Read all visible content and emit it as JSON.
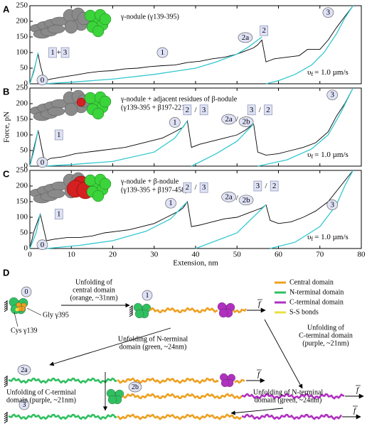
{
  "chart_data": [
    {
      "type": "line",
      "panel": "A",
      "description": [
        "γ-nodule (γ139-395)"
      ],
      "speed_symbol": "υ",
      "speed_sub": "f",
      "speed_value": "= 1.0 µm/s",
      "xlim": [
        0,
        80
      ],
      "ylim": [
        0,
        250
      ],
      "yticks": [
        0,
        50,
        100,
        150,
        200,
        250
      ],
      "series": [
        {
          "color": "#000000",
          "x": [
            0,
            1,
            2,
            2.5,
            3.5,
            5,
            8,
            11,
            14,
            17,
            20,
            23,
            26,
            29,
            32,
            35,
            38,
            41,
            44,
            47,
            50,
            52,
            54,
            55,
            56,
            57,
            59,
            62,
            65,
            67,
            70,
            72,
            74,
            76,
            78
          ],
          "values": [
            0,
            45,
            95,
            60,
            10,
            15,
            22,
            28,
            35,
            40,
            42,
            48,
            50,
            55,
            58,
            60,
            68,
            72,
            80,
            85,
            95,
            105,
            115,
            125,
            140,
            70,
            80,
            85,
            90,
            110,
            110,
            140,
            180,
            215,
            250
          ]
        },
        {
          "color": "#33c8d0",
          "x": [
            0,
            1,
            2,
            2.1,
            3,
            10,
            20,
            30,
            40,
            45,
            50,
            53,
            56,
            56.1,
            57,
            60,
            64,
            68,
            71,
            74,
            76,
            78
          ],
          "values": [
            0,
            40,
            100,
            null,
            0,
            5,
            15,
            30,
            50,
            70,
            95,
            120,
            150,
            null,
            0,
            10,
            30,
            60,
            100,
            160,
            210,
            250
          ]
        }
      ],
      "annotations": [
        {
          "text": "0",
          "style": "circle"
        },
        {
          "text": "1",
          "style": "box"
        },
        {
          "text": "+",
          "style": "plain"
        },
        {
          "text": "3",
          "style": "box"
        },
        {
          "text": "1",
          "style": "circle"
        },
        {
          "text": "2a",
          "style": "circle"
        },
        {
          "text": "2",
          "style": "box"
        },
        {
          "text": "3",
          "style": "circle"
        }
      ]
    },
    {
      "type": "line",
      "panel": "B",
      "ylabel": "Force, pN",
      "description": [
        "γ-nodule + adjacent residues of β-nodule",
        "(γ139-395 + β197-221)"
      ],
      "speed_symbol": "υ",
      "speed_sub": "f",
      "speed_value": "= 1.0 µm/s",
      "xlim": [
        0,
        80
      ],
      "ylim": [
        0,
        250
      ],
      "yticks": [
        0,
        50,
        100,
        150,
        200,
        250
      ],
      "series": [
        {
          "color": "#000000",
          "x": [
            0,
            1,
            2,
            3.5,
            5,
            8,
            11,
            14,
            17,
            20,
            23,
            26,
            29,
            32,
            35,
            37,
            38,
            39,
            41,
            44,
            47,
            50,
            52,
            54,
            55,
            57,
            60,
            63,
            66,
            69,
            72,
            74,
            76,
            78
          ],
          "values": [
            0,
            60,
            115,
            15,
            25,
            30,
            40,
            45,
            50,
            55,
            60,
            70,
            80,
            90,
            110,
            125,
            145,
            60,
            70,
            80,
            90,
            100,
            115,
            135,
            45,
            35,
            40,
            50,
            60,
            75,
            110,
            160,
            200,
            250
          ]
        },
        {
          "color": "#33c8d0",
          "x": [
            0,
            1,
            2,
            2.1,
            3,
            10,
            20,
            30,
            35,
            38,
            38.1,
            39,
            45,
            50,
            54,
            54.1,
            55,
            62,
            68,
            72,
            75,
            78
          ],
          "values": [
            0,
            50,
            115,
            null,
            0,
            5,
            15,
            45,
            90,
            145,
            null,
            0,
            40,
            80,
            135,
            null,
            0,
            20,
            55,
            100,
            170,
            250
          ]
        }
      ],
      "annotations": [
        {
          "text": "0",
          "style": "circle"
        },
        {
          "text": "1",
          "style": "box"
        },
        {
          "text": "1",
          "style": "circle"
        },
        {
          "text": "2",
          "style": "box"
        },
        {
          "text": "/",
          "style": "plain"
        },
        {
          "text": "3",
          "style": "box"
        },
        {
          "text": "2a",
          "style": "circle"
        },
        {
          "text": "/",
          "style": "plain"
        },
        {
          "text": "2b",
          "style": "circle"
        },
        {
          "text": "3",
          "style": "box"
        },
        {
          "text": "/",
          "style": "plain"
        },
        {
          "text": "2",
          "style": "box"
        },
        {
          "text": "3",
          "style": "circle"
        }
      ]
    },
    {
      "type": "line",
      "panel": "C",
      "xlabel": "Extension, nm",
      "description": [
        "γ-nodule + β-nodule",
        "(γ139-395 + β197-458)"
      ],
      "speed_symbol": "υ",
      "speed_sub": "f",
      "speed_value": "= 1.0 µm/s",
      "xlim": [
        0,
        80
      ],
      "xticks": [
        0,
        10,
        20,
        30,
        40,
        50,
        60,
        70,
        80
      ],
      "ylim": [
        0,
        250
      ],
      "yticks": [
        0,
        50,
        100,
        150,
        200,
        250
      ],
      "series": [
        {
          "color": "#000000",
          "x": [
            0,
            1,
            2.5,
            4,
            6,
            9,
            12,
            15,
            18,
            21,
            24,
            27,
            30,
            33,
            36,
            37,
            38,
            39,
            41,
            44,
            47,
            50,
            53,
            55,
            56,
            57,
            58,
            60,
            63,
            66,
            69,
            72,
            75,
            78
          ],
          "values": [
            0,
            55,
            110,
            25,
            30,
            35,
            35,
            40,
            50,
            55,
            60,
            70,
            80,
            100,
            120,
            130,
            150,
            70,
            75,
            85,
            95,
            100,
            115,
            125,
            130,
            140,
            90,
            80,
            85,
            100,
            120,
            150,
            200,
            250
          ]
        },
        {
          "color": "#33c8d0",
          "x": [
            0,
            1.5,
            2.5,
            2.6,
            4,
            12,
            20,
            28,
            34,
            38,
            38.1,
            40,
            50,
            57,
            57.1,
            58,
            64,
            70,
            74,
            76,
            78
          ],
          "values": [
            0,
            50,
            110,
            null,
            0,
            10,
            25,
            55,
            95,
            150,
            null,
            0,
            50,
            140,
            null,
            0,
            20,
            70,
            140,
            200,
            250
          ]
        }
      ],
      "annotations": [
        {
          "text": "0",
          "style": "circle"
        },
        {
          "text": "1",
          "style": "box"
        },
        {
          "text": "1",
          "style": "circle"
        },
        {
          "text": "2",
          "style": "box"
        },
        {
          "text": "/",
          "style": "plain"
        },
        {
          "text": "3",
          "style": "box"
        },
        {
          "text": "2a",
          "style": "circle"
        },
        {
          "text": "/",
          "style": "plain"
        },
        {
          "text": "2b",
          "style": "circle"
        },
        {
          "text": "3",
          "style": "box"
        },
        {
          "text": "/",
          "style": "plain"
        },
        {
          "text": "2",
          "style": "box"
        },
        {
          "text": "3",
          "style": "circle"
        }
      ]
    }
  ],
  "panel_d": {
    "label": "D",
    "states": [
      "0",
      "1",
      "2a",
      "2b",
      "3"
    ],
    "force_symbol": "f",
    "residue_labels": [
      "Cys γ139",
      "Gly γ395"
    ],
    "legend": [
      {
        "name": "Central domain",
        "color": "#eea020"
      },
      {
        "name": "N-terminal domain",
        "color": "#30c060"
      },
      {
        "name": "C-terminal domain",
        "color": "#b030c0"
      },
      {
        "name": "S-S bonds",
        "color": "#e8e040"
      }
    ],
    "steps": [
      [
        "Unfolding of",
        "central domain",
        "(orange, ~31nm)"
      ],
      [
        "Unfolding of N-terminal",
        "domain (green, ~24nm)"
      ],
      [
        "Unfolding of",
        "C-terminal domain",
        "(purple, ~21nm)"
      ],
      [
        "Unfolding of C-terminal",
        "domain (purple, ~21nm)"
      ],
      [
        "Unfolding of N-terminal",
        "domain (green, ~24nm)"
      ]
    ]
  }
}
